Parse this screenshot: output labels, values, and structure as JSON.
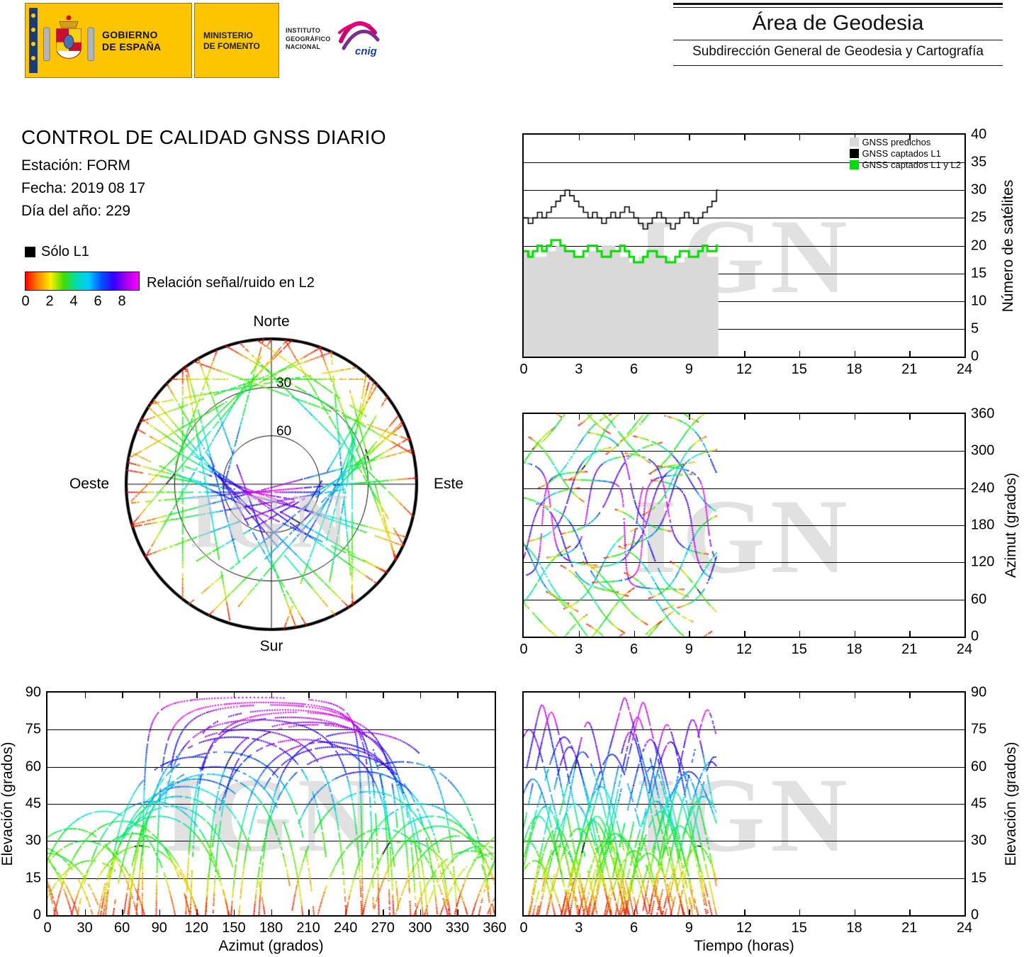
{
  "header": {
    "gov": {
      "line1": "GOBIERNO",
      "line2": "DE ESPAÑA"
    },
    "ministry": {
      "line1": "MINISTERIO",
      "line2": "DE FOMENTO"
    },
    "ign": {
      "line1": "INSTITUTO",
      "line2": "GEOGRÁFICO",
      "line3": "NACIONAL"
    },
    "cnig": "cnig",
    "area_title": "Área de Geodesia",
    "area_subtitle": "Subdirección General de Geodesia y Cartografía"
  },
  "info": {
    "title": "CONTROL DE CALIDAD GNSS DIARIO",
    "station": "Estación: FORM",
    "date": "Fecha: 2019 08 17",
    "doy": "Día del año: 229"
  },
  "legend": {
    "solo_l1": "Sólo L1",
    "solo_l1_color": "#000000",
    "snr_label": "Relación señal/ruido en L2",
    "snr_ticks": [
      "0",
      "2",
      "4",
      "6",
      "8"
    ],
    "colorbar_stops": [
      "#ff0000",
      "#ff8800",
      "#ffee00",
      "#44dd00",
      "#00ddaa",
      "#00ccff",
      "#0055ff",
      "#3300ff",
      "#aa00ee",
      "#ff00ff"
    ]
  },
  "skyplot": {
    "north": "Norte",
    "south": "Sur",
    "east": "Este",
    "west": "Oeste",
    "ring30": "30",
    "ring60": "60"
  },
  "watermark": "IGN",
  "chart_data": {
    "sat_count": {
      "type": "line",
      "xlim": [
        0,
        24
      ],
      "ylim": [
        0,
        40
      ],
      "xticks": [
        0,
        3,
        6,
        9,
        12,
        15,
        18,
        21,
        24
      ],
      "yticks": [
        0,
        5,
        10,
        15,
        20,
        25,
        30,
        35,
        40
      ],
      "ylabel": "Número de satélites",
      "t_start": 0,
      "dt": 0.25,
      "t_end": 10.6,
      "legend": [
        {
          "label": "GNSS predichos",
          "color": "#d9d9d9"
        },
        {
          "label": "GNSS captados L1",
          "color": "#000000"
        },
        {
          "label": "GNSS captados L1 y L2",
          "color": "#00dd00"
        }
      ],
      "predicted": [
        19,
        19,
        18,
        18,
        18,
        19,
        19,
        20,
        20,
        19,
        19,
        18,
        18,
        18,
        19,
        19,
        19,
        20,
        20,
        20,
        19,
        18,
        18,
        17,
        17,
        18,
        18,
        19,
        19,
        19,
        18,
        18,
        17,
        17,
        17,
        18,
        18,
        18,
        19,
        19,
        18,
        18,
        18
      ],
      "l1": [
        25,
        24,
        25,
        26,
        25,
        26,
        27,
        28,
        29,
        30,
        29,
        28,
        27,
        26,
        25,
        26,
        25,
        24,
        25,
        26,
        25,
        26,
        27,
        26,
        25,
        24,
        23,
        24,
        25,
        26,
        25,
        24,
        23,
        24,
        25,
        26,
        25,
        24,
        25,
        26,
        27,
        28,
        30
      ],
      "l1l2": [
        19,
        18,
        19,
        20,
        19,
        20,
        21,
        21,
        20,
        19,
        19,
        18,
        18,
        19,
        20,
        20,
        19,
        18,
        18,
        19,
        19,
        20,
        19,
        18,
        17,
        17,
        18,
        19,
        19,
        18,
        18,
        17,
        17,
        18,
        19,
        19,
        18,
        18,
        19,
        20,
        19,
        19,
        20
      ]
    },
    "azimuth_time": {
      "type": "scatter",
      "xlim": [
        0,
        24
      ],
      "ylim": [
        0,
        360
      ],
      "xticks": [
        0,
        3,
        6,
        9,
        12,
        15,
        18,
        21,
        24
      ],
      "yticks": [
        0,
        60,
        120,
        180,
        240,
        300,
        360
      ],
      "ylabel": "Azimut (grados)"
    },
    "elevation_azimuth": {
      "type": "scatter",
      "xlim": [
        0,
        360
      ],
      "ylim": [
        0,
        90
      ],
      "xticks": [
        0,
        30,
        60,
        90,
        120,
        150,
        180,
        210,
        240,
        270,
        300,
        330,
        360
      ],
      "yticks": [
        0,
        15,
        30,
        45,
        60,
        75,
        90
      ],
      "xlabel": "Azimut (grados)",
      "ylabel": "Elevación (grados)"
    },
    "elevation_time": {
      "type": "scatter",
      "xlim": [
        0,
        24
      ],
      "ylim": [
        0,
        90
      ],
      "xticks": [
        0,
        3,
        6,
        9,
        12,
        15,
        18,
        21,
        24
      ],
      "yticks": [
        0,
        15,
        30,
        45,
        60,
        75,
        90
      ],
      "xlabel": "Tiempo (horas)",
      "ylabel": "Elevación (grados)"
    },
    "tracks": {
      "type": "scatter-tracks",
      "description": "GNSS satellite passes, dots colored by L2 signal/noise ratio; data recorded 0h-10.5h",
      "time_window": [
        0,
        10.5
      ],
      "snr_range": [
        0,
        8.6
      ],
      "snr_hue_range": [
        0,
        300
      ],
      "passes_fields": [
        "t_peak_h",
        "duration_h",
        "azimuth_peak_deg",
        "elevation_max_deg",
        "direction"
      ],
      "passes": [
        [
          1.0,
          5.0,
          180,
          85,
          1
        ],
        [
          2.2,
          6.0,
          150,
          72,
          -1
        ],
        [
          3.5,
          4.5,
          210,
          78,
          1
        ],
        [
          0.5,
          4.0,
          120,
          55,
          -1
        ],
        [
          4.8,
          5.5,
          240,
          65,
          1
        ],
        [
          5.5,
          6.5,
          165,
          88,
          -1
        ],
        [
          6.2,
          5.0,
          195,
          80,
          1
        ],
        [
          7.0,
          4.0,
          135,
          60,
          -1
        ],
        [
          8.0,
          5.0,
          225,
          70,
          1
        ],
        [
          9.0,
          6.0,
          255,
          58,
          -1
        ],
        [
          9.8,
          4.5,
          105,
          48,
          1
        ],
        [
          10.2,
          5.0,
          285,
          62,
          -1
        ],
        [
          0.8,
          3.5,
          90,
          40,
          1
        ],
        [
          1.8,
          3.0,
          270,
          35,
          -1
        ],
        [
          2.8,
          4.0,
          300,
          45,
          1
        ],
        [
          3.8,
          3.5,
          60,
          38,
          -1
        ],
        [
          4.5,
          3.0,
          30,
          30,
          1
        ],
        [
          5.2,
          3.5,
          330,
          32,
          -1
        ],
        [
          6.8,
          3.0,
          0,
          25,
          1
        ],
        [
          7.5,
          4.0,
          45,
          42,
          -1
        ],
        [
          8.5,
          3.5,
          315,
          36,
          1
        ],
        [
          9.5,
          3.0,
          75,
          28,
          -1
        ],
        [
          0.3,
          5.5,
          160,
          75,
          1
        ],
        [
          1.5,
          5.0,
          200,
          82,
          -1
        ],
        [
          2.5,
          4.5,
          230,
          68,
          1
        ],
        [
          3.2,
          5.0,
          140,
          66,
          -1
        ],
        [
          4.2,
          4.0,
          110,
          52,
          1
        ],
        [
          5.8,
          4.5,
          250,
          74,
          -1
        ],
        [
          6.5,
          5.5,
          175,
          86,
          1
        ],
        [
          7.8,
          4.5,
          215,
          77,
          -1
        ],
        [
          8.8,
          4.0,
          130,
          57,
          1
        ],
        [
          10.0,
          5.5,
          190,
          83,
          -1
        ],
        [
          0.2,
          3.0,
          290,
          30,
          1
        ],
        [
          1.2,
          3.5,
          100,
          44,
          -1
        ],
        [
          2.0,
          3.0,
          350,
          28,
          1
        ],
        [
          3.0,
          3.5,
          20,
          35,
          -1
        ],
        [
          4.0,
          3.0,
          310,
          40,
          1
        ],
        [
          5.0,
          3.5,
          70,
          33,
          -1
        ],
        [
          6.0,
          3.0,
          340,
          26,
          1
        ],
        [
          7.2,
          4.0,
          85,
          46,
          -1
        ],
        [
          8.2,
          3.5,
          260,
          50,
          1
        ],
        [
          9.2,
          4.5,
          170,
          79,
          -1
        ],
        [
          10.4,
          4.0,
          120,
          64,
          1
        ],
        [
          0.6,
          3.0,
          35,
          22,
          -1
        ],
        [
          6.9,
          5.0,
          205,
          71,
          1
        ]
      ]
    }
  }
}
